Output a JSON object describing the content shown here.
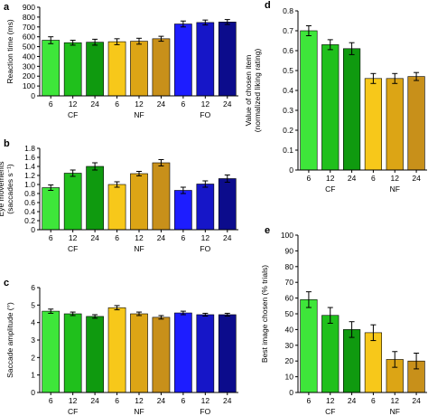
{
  "colors": {
    "green_light": "#3ee63a",
    "green_mid": "#20c01c",
    "green_dark": "#0f9a0f",
    "gold_light": "#f7c81a",
    "gold_mid": "#dca515",
    "gold_dark": "#c8901a",
    "blue_light": "#1d1dff",
    "blue_mid": "#1616c8",
    "blue_dark": "#0c0c8c",
    "error_bar": "#000000",
    "axis": "#000000"
  },
  "chart_data": [
    {
      "panel": "a",
      "type": "bar",
      "ylabel": "Reaction time (ms)",
      "ylim": [
        0,
        900
      ],
      "yticks": [
        0,
        100,
        200,
        300,
        400,
        500,
        600,
        700,
        800,
        900
      ],
      "groups": [
        "CF",
        "NF",
        "FO"
      ],
      "categories": [
        "6",
        "12",
        "24",
        "6",
        "12",
        "24",
        "6",
        "12",
        "24"
      ],
      "values": [
        565,
        540,
        545,
        550,
        555,
        580,
        730,
        745,
        750
      ],
      "errors": [
        35,
        25,
        30,
        30,
        30,
        25,
        30,
        25,
        25
      ],
      "bar_colors": [
        "green_light",
        "green_mid",
        "green_dark",
        "gold_light",
        "gold_mid",
        "gold_dark",
        "blue_light",
        "blue_mid",
        "blue_dark"
      ]
    },
    {
      "panel": "b",
      "type": "bar",
      "ylabel": "Eye movements (saccades s⁻¹)",
      "ylabel_lines": [
        "Eye movements",
        "(saccades s⁻¹)"
      ],
      "ylim": [
        0,
        1.8
      ],
      "yticks": [
        0,
        0.2,
        0.4,
        0.6,
        0.8,
        1.0,
        1.2,
        1.4,
        1.6,
        1.8
      ],
      "ytick_labels": [
        "0",
        "0.2",
        "0.4",
        "0.6",
        "0.8",
        "1.0",
        "1.2",
        "1.4",
        "1.6",
        "1.8"
      ],
      "groups": [
        "CF",
        "NF",
        "FO"
      ],
      "categories": [
        "6",
        "12",
        "24",
        "6",
        "12",
        "24",
        "6",
        "12",
        "24"
      ],
      "values": [
        0.93,
        1.25,
        1.4,
        1.0,
        1.24,
        1.48,
        0.87,
        1.01,
        1.13
      ],
      "errors": [
        0.06,
        0.07,
        0.08,
        0.06,
        0.05,
        0.07,
        0.07,
        0.07,
        0.08
      ],
      "bar_colors": [
        "green_light",
        "green_mid",
        "green_dark",
        "gold_light",
        "gold_mid",
        "gold_dark",
        "blue_light",
        "blue_mid",
        "blue_dark"
      ]
    },
    {
      "panel": "c",
      "type": "bar",
      "ylabel": "Saccade amplitude (°)",
      "ylim": [
        0,
        6
      ],
      "yticks": [
        0,
        1,
        2,
        3,
        4,
        5,
        6
      ],
      "groups": [
        "CF",
        "NF",
        "FO"
      ],
      "categories": [
        "6",
        "12",
        "24",
        "6",
        "12",
        "24",
        "6",
        "12",
        "24"
      ],
      "values": [
        4.65,
        4.5,
        4.35,
        4.85,
        4.5,
        4.3,
        4.55,
        4.45,
        4.45
      ],
      "errors": [
        0.12,
        0.1,
        0.1,
        0.12,
        0.1,
        0.1,
        0.1,
        0.08,
        0.08
      ],
      "bar_colors": [
        "green_light",
        "green_mid",
        "green_dark",
        "gold_light",
        "gold_mid",
        "gold_dark",
        "blue_light",
        "blue_mid",
        "blue_dark"
      ]
    },
    {
      "panel": "d",
      "type": "bar",
      "ylabel": "Value of chosen item (normalized liking rating)",
      "ylabel_lines": [
        "Value of chosen item",
        "(normalized liking rating)"
      ],
      "ylim": [
        0,
        0.8
      ],
      "yticks": [
        0,
        0.1,
        0.2,
        0.3,
        0.4,
        0.5,
        0.6,
        0.7,
        0.8
      ],
      "ytick_labels": [
        "0",
        "0.1",
        "0.2",
        "0.3",
        "0.4",
        "0.5",
        "0.6",
        "0.7",
        "0.8"
      ],
      "groups": [
        "CF",
        "NF"
      ],
      "categories": [
        "6",
        "12",
        "24",
        "6",
        "12",
        "24"
      ],
      "values": [
        0.7,
        0.63,
        0.61,
        0.46,
        0.46,
        0.47
      ],
      "errors": [
        0.025,
        0.025,
        0.03,
        0.025,
        0.025,
        0.02
      ],
      "bar_colors": [
        "green_light",
        "green_mid",
        "green_dark",
        "gold_light",
        "gold_mid",
        "gold_dark"
      ]
    },
    {
      "panel": "e",
      "type": "bar",
      "ylabel": "Best image chosen (% trials)",
      "ylim": [
        0,
        100
      ],
      "yticks": [
        0,
        10,
        20,
        30,
        40,
        50,
        60,
        70,
        80,
        90,
        100
      ],
      "groups": [
        "CF",
        "NF"
      ],
      "categories": [
        "6",
        "12",
        "24",
        "6",
        "12",
        "24"
      ],
      "values": [
        59,
        49,
        40,
        38,
        21,
        20
      ],
      "errors": [
        5,
        5,
        5,
        5,
        5,
        5
      ],
      "bar_colors": [
        "green_light",
        "green_mid",
        "green_dark",
        "gold_light",
        "gold_mid",
        "gold_dark"
      ]
    }
  ]
}
